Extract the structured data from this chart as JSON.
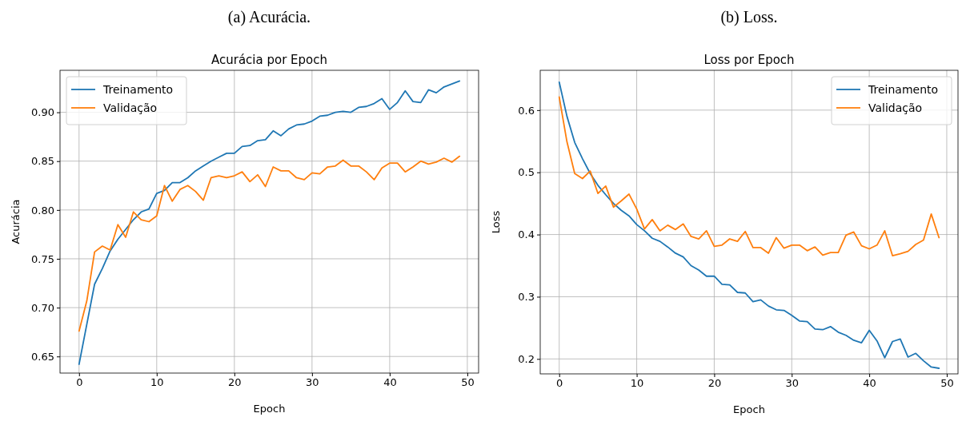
{
  "chart_data": [
    {
      "type": "line",
      "title": "Acurácia por Epoch",
      "xlabel": "Epoch",
      "ylabel": "Acurácia",
      "annotations": [
        "(a) Acurácia."
      ],
      "x": [
        0,
        1,
        2,
        3,
        4,
        5,
        6,
        7,
        8,
        9,
        10,
        11,
        12,
        13,
        14,
        15,
        16,
        17,
        18,
        19,
        20,
        21,
        22,
        23,
        24,
        25,
        26,
        27,
        28,
        29,
        30,
        31,
        32,
        33,
        34,
        35,
        36,
        37,
        38,
        39,
        40,
        41,
        42,
        43,
        44,
        45,
        46,
        47,
        48,
        49
      ],
      "xlim": [
        -2.45,
        51.45
      ],
      "xticks": [
        0,
        10,
        20,
        30,
        40,
        50
      ],
      "ylim": [
        0.633,
        0.943
      ],
      "yticks": [
        {
          "value": 0.65,
          "label": "0.65"
        },
        {
          "value": 0.7,
          "label": "0.70"
        },
        {
          "value": 0.75,
          "label": "0.75"
        },
        {
          "value": 0.8,
          "label": "0.80"
        },
        {
          "value": 0.85,
          "label": "0.85"
        },
        {
          "value": 0.9,
          "label": "0.90"
        }
      ],
      "grid": true,
      "legend": "top left",
      "line_style": "solid",
      "series": [
        {
          "name": "Treinamento",
          "color": "#1f77b4",
          "values": [
            0.642,
            0.683,
            0.724,
            0.74,
            0.758,
            0.77,
            0.78,
            0.79,
            0.798,
            0.801,
            0.817,
            0.82,
            0.828,
            0.828,
            0.833,
            0.84,
            0.845,
            0.85,
            0.854,
            0.858,
            0.858,
            0.865,
            0.866,
            0.871,
            0.872,
            0.881,
            0.876,
            0.883,
            0.887,
            0.888,
            0.891,
            0.896,
            0.897,
            0.9,
            0.901,
            0.9,
            0.905,
            0.906,
            0.909,
            0.914,
            0.903,
            0.91,
            0.922,
            0.911,
            0.91,
            0.923,
            0.92,
            0.926,
            0.929,
            0.932
          ]
        },
        {
          "name": "Validação",
          "color": "#ff7f0e",
          "values": [
            0.676,
            0.707,
            0.757,
            0.763,
            0.759,
            0.785,
            0.772,
            0.798,
            0.79,
            0.788,
            0.794,
            0.825,
            0.809,
            0.821,
            0.825,
            0.819,
            0.81,
            0.833,
            0.835,
            0.833,
            0.835,
            0.839,
            0.829,
            0.836,
            0.824,
            0.844,
            0.84,
            0.84,
            0.833,
            0.831,
            0.838,
            0.837,
            0.844,
            0.845,
            0.851,
            0.845,
            0.845,
            0.839,
            0.831,
            0.843,
            0.848,
            0.848,
            0.839,
            0.844,
            0.85,
            0.847,
            0.849,
            0.853,
            0.849,
            0.855
          ]
        }
      ]
    },
    {
      "type": "line",
      "title": "Loss por Epoch",
      "xlabel": "Epoch",
      "ylabel": "Loss",
      "annotations": [
        "(b) Loss."
      ],
      "x": [
        0,
        1,
        2,
        3,
        4,
        5,
        6,
        7,
        8,
        9,
        10,
        11,
        12,
        13,
        14,
        15,
        16,
        17,
        18,
        19,
        20,
        21,
        22,
        23,
        24,
        25,
        26,
        27,
        28,
        29,
        30,
        31,
        32,
        33,
        34,
        35,
        36,
        37,
        38,
        39,
        40,
        41,
        42,
        43,
        44,
        45,
        46,
        47,
        48,
        49
      ],
      "xlim": [
        -2.45,
        51.45
      ],
      "xticks": [
        0,
        10,
        20,
        30,
        40,
        50
      ],
      "ylim": [
        0.176,
        0.664
      ],
      "yticks": [
        {
          "value": 0.2,
          "label": "0.2"
        },
        {
          "value": 0.3,
          "label": "0.3"
        },
        {
          "value": 0.4,
          "label": "0.4"
        },
        {
          "value": 0.5,
          "label": "0.5"
        },
        {
          "value": 0.6,
          "label": "0.6"
        }
      ],
      "grid": true,
      "legend": "top right",
      "line_style": "solid",
      "series": [
        {
          "name": "Treinamento",
          "color": "#1f77b4",
          "values": [
            0.645,
            0.59,
            0.548,
            0.522,
            0.498,
            0.479,
            0.464,
            0.45,
            0.439,
            0.43,
            0.416,
            0.406,
            0.394,
            0.389,
            0.38,
            0.37,
            0.364,
            0.35,
            0.343,
            0.333,
            0.333,
            0.32,
            0.319,
            0.307,
            0.306,
            0.292,
            0.295,
            0.285,
            0.279,
            0.278,
            0.27,
            0.261,
            0.26,
            0.248,
            0.247,
            0.252,
            0.243,
            0.238,
            0.23,
            0.226,
            0.246,
            0.229,
            0.202,
            0.228,
            0.232,
            0.203,
            0.209,
            0.197,
            0.187,
            0.185
          ]
        },
        {
          "name": "Validação",
          "color": "#ff7f0e",
          "values": [
            0.621,
            0.549,
            0.498,
            0.49,
            0.502,
            0.466,
            0.478,
            0.444,
            0.454,
            0.465,
            0.441,
            0.409,
            0.424,
            0.406,
            0.415,
            0.408,
            0.417,
            0.397,
            0.393,
            0.406,
            0.381,
            0.383,
            0.393,
            0.389,
            0.405,
            0.379,
            0.379,
            0.37,
            0.395,
            0.378,
            0.383,
            0.383,
            0.374,
            0.38,
            0.367,
            0.371,
            0.371,
            0.399,
            0.404,
            0.382,
            0.377,
            0.383,
            0.406,
            0.366,
            0.369,
            0.373,
            0.384,
            0.391,
            0.433,
            0.395
          ]
        }
      ]
    }
  ]
}
